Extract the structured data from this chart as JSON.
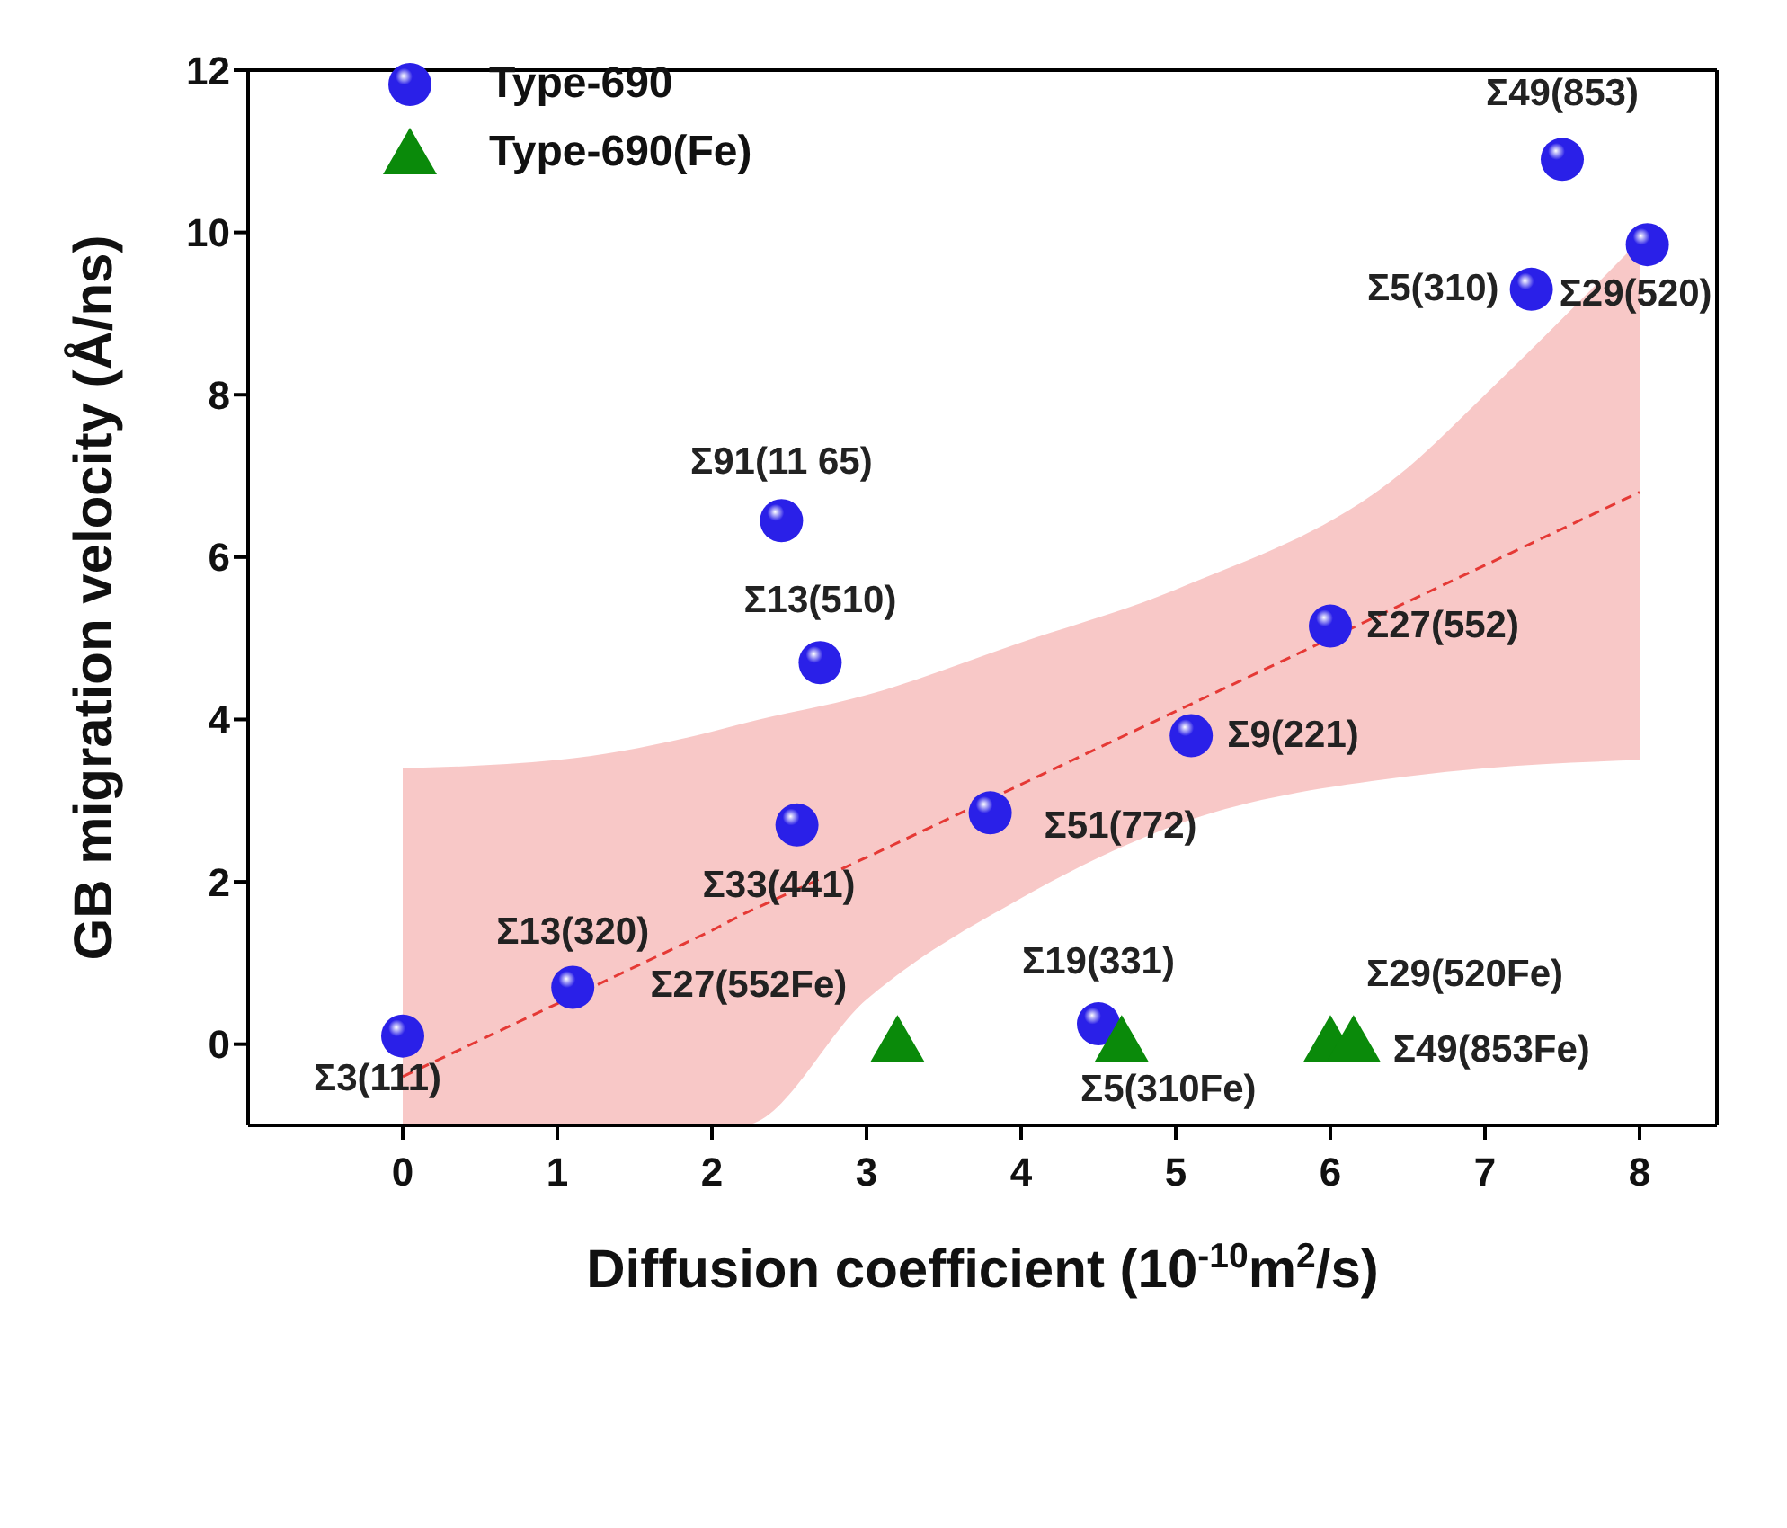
{
  "chart_data": {
    "type": "scatter",
    "xlabel": "Diffusion coefficient (10$^{-10}$m$^{2}$/s)",
    "ylabel": "GB migration velocity (Å/ns)",
    "xlim": [
      -1,
      8.5
    ],
    "xticks": [
      0,
      1,
      2,
      3,
      4,
      5,
      6,
      7,
      8
    ],
    "ylim": [
      -1,
      12
    ],
    "yticks": [
      0,
      2,
      4,
      6,
      8,
      10,
      12
    ],
    "grid": false,
    "legend": "top left",
    "series": [
      {
        "name": "Type-690",
        "type": "scatter",
        "marker": "circle",
        "color": "#2a20e8",
        "x": [
          0,
          1.1,
          2.55,
          2.45,
          2.7,
          3.8,
          4.5,
          5.1,
          6.0,
          7.3,
          7.5,
          8.05
        ],
        "values": [
          0.1,
          0.7,
          2.7,
          6.45,
          4.7,
          2.85,
          0.25,
          3.8,
          5.15,
          9.3,
          10.9,
          9.85
        ]
      },
      {
        "name": "Type-690(Fe)",
        "marker": "triangle",
        "color": "#0a8a0a",
        "x": [
          3.2,
          4.65,
          6.0,
          6.15
        ],
        "values": [
          0.05,
          0.05,
          0.05,
          0.05
        ]
      },
      {
        "type": "line",
        "color": "#e53935",
        "line_style": "dashed",
        "marker": "none",
        "x": [
          0,
          1,
          2,
          2.2,
          3,
          4,
          5,
          6.5,
          7,
          8
        ],
        "values": [
          -0.4,
          0.5,
          1.4,
          1.6,
          2.3,
          3.2,
          4.1,
          5.45,
          5.9,
          6.8
        ],
        "lower": [
          -1,
          -1,
          -1,
          -1,
          0.55,
          1.8,
          2.7,
          3.3,
          3.4,
          3.5
        ],
        "upper": [
          3.4,
          3.5,
          3.85,
          3.95,
          4.3,
          4.95,
          5.6,
          7.1,
          8.0,
          9.9
        ]
      }
    ],
    "annotations": [
      {
        "text": "Σ3(111)",
        "x": 0,
        "y": 0.1
      },
      {
        "text": "Σ13(320)",
        "x": 1.1,
        "y": 0.7
      },
      {
        "text": "Σ33(441)",
        "x": 2.55,
        "y": 2.7
      },
      {
        "text": "Σ91(11 65)",
        "x": 2.45,
        "y": 6.45
      },
      {
        "text": "Σ13(510)",
        "x": 2.7,
        "y": 4.7
      },
      {
        "text": "Σ51(772)",
        "x": 3.8,
        "y": 2.85
      },
      {
        "text": "Σ19(331)",
        "x": 4.5,
        "y": 0.25
      },
      {
        "text": "Σ9(221)",
        "x": 5.1,
        "y": 3.8
      },
      {
        "text": "Σ27(552)",
        "x": 6.0,
        "y": 5.15
      },
      {
        "text": "Σ5(310)",
        "x": 7.3,
        "y": 9.3
      },
      {
        "text": "Σ49(853)",
        "x": 7.5,
        "y": 10.9
      },
      {
        "text": "Σ29(520)",
        "x": 8.05,
        "y": 9.85
      },
      {
        "text": "Σ27(552Fe)",
        "x": 3.2,
        "y": 0.05
      },
      {
        "text": "Σ5(310Fe)",
        "x": 4.65,
        "y": 0.05
      },
      {
        "text": "Σ29(520Fe)",
        "x": 6.0,
        "y": 0.05
      },
      {
        "text": "Σ49(853Fe)",
        "x": 6.15,
        "y": 0.05
      }
    ]
  }
}
